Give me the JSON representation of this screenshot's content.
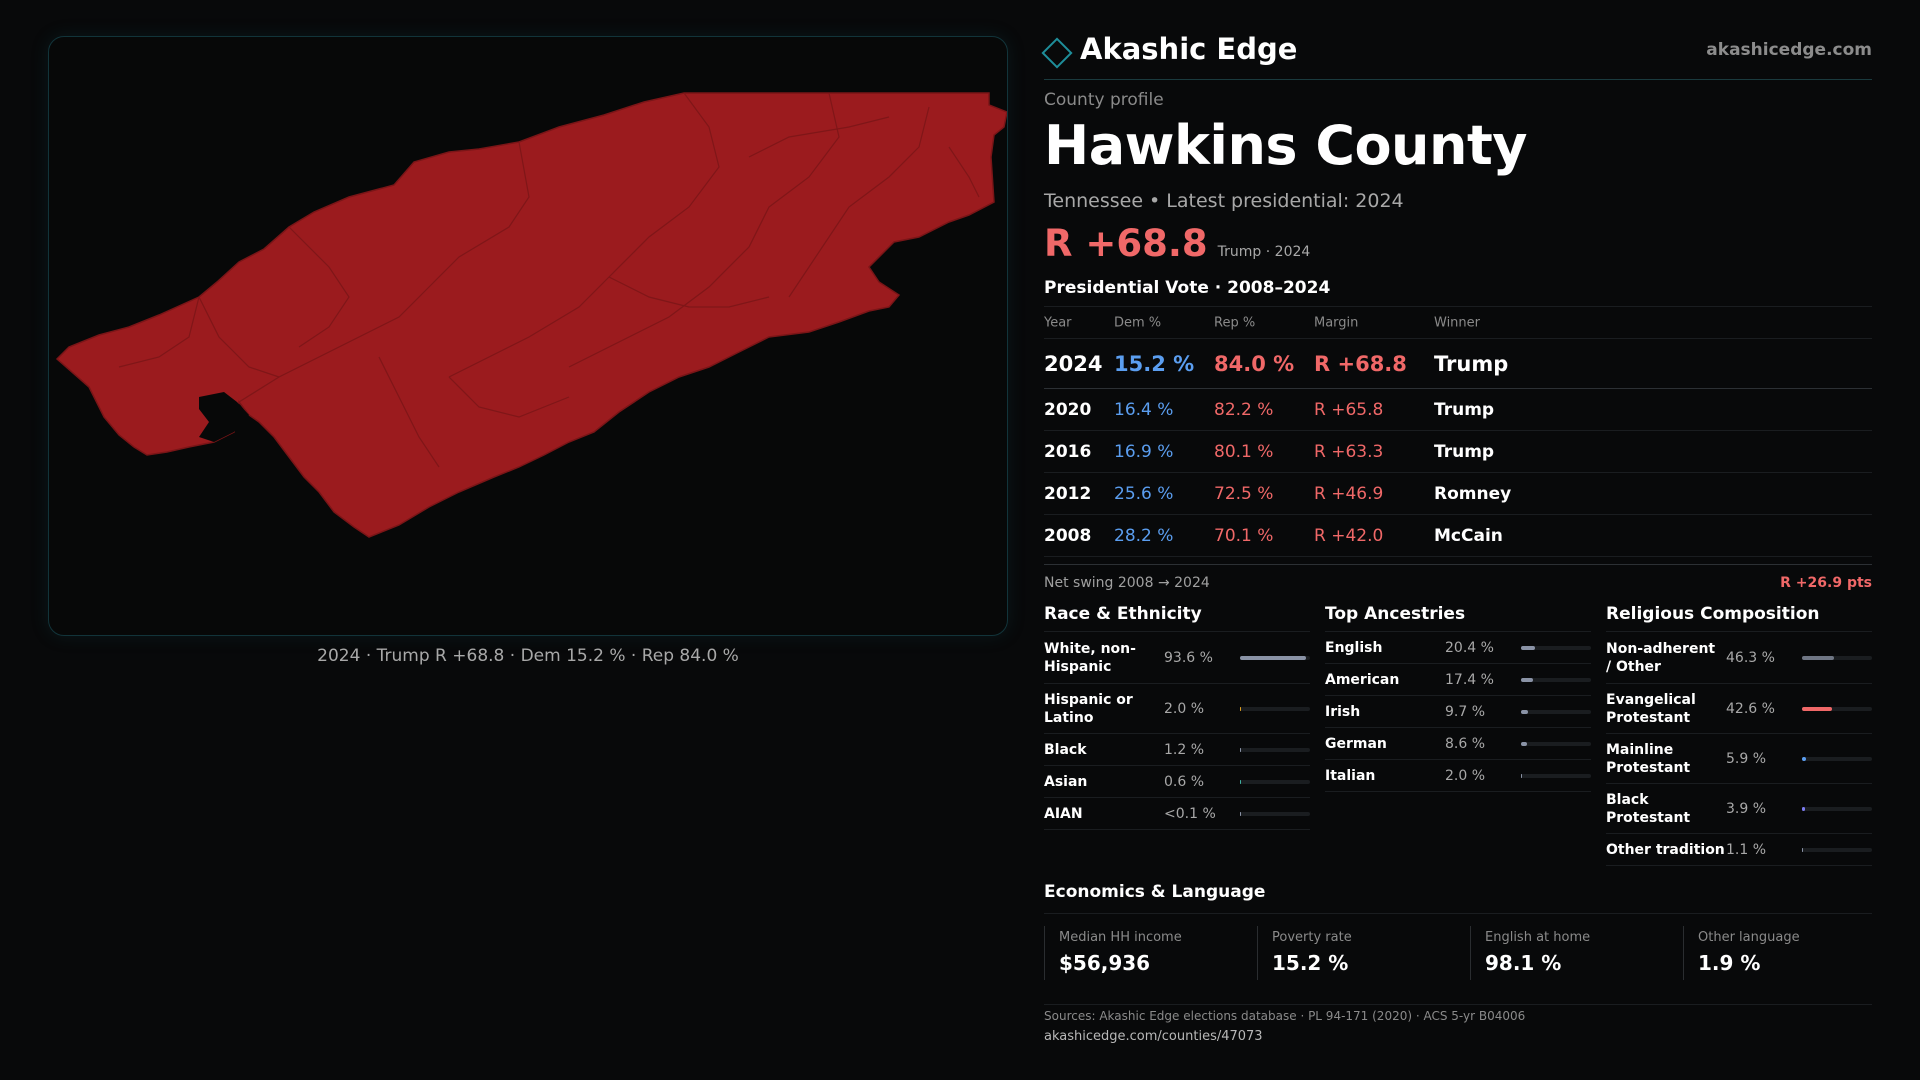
{
  "map": {
    "caption": "2024 · Trump R +68.8 · Dem 15.2 % · Rep 84.0 %",
    "fill_color": "#9b1b1e"
  },
  "brand": {
    "name": "Akashic Edge",
    "url": "akashicedge.com",
    "icon": "diamond-icon",
    "accent": "#1e8e9a"
  },
  "profile": {
    "kicker": "County profile",
    "county": "Hawkins County",
    "subline": "Tennessee • Latest presidential: 2024",
    "headline_margin": "R +68.8",
    "headline_note": "Trump · 2024"
  },
  "vote": {
    "title": "Presidential Vote · 2008–2024",
    "headers": {
      "year": "Year",
      "dem": "Dem %",
      "rep": "Rep %",
      "margin": "Margin",
      "winner": "Winner"
    },
    "rows": [
      {
        "year": "2024",
        "dem": "15.2 %",
        "rep": "84.0 %",
        "margin": "R +68.8",
        "winner": "Trump"
      },
      {
        "year": "2020",
        "dem": "16.4 %",
        "rep": "82.2 %",
        "margin": "R +65.8",
        "winner": "Trump"
      },
      {
        "year": "2016",
        "dem": "16.9 %",
        "rep": "80.1 %",
        "margin": "R +63.3",
        "winner": "Trump"
      },
      {
        "year": "2012",
        "dem": "25.6 %",
        "rep": "72.5 %",
        "margin": "R +46.9",
        "winner": "Romney"
      },
      {
        "year": "2008",
        "dem": "28.2 %",
        "rep": "70.1 %",
        "margin": "R +42.0",
        "winner": "McCain"
      }
    ],
    "colors": {
      "dem": "#5b9ef0",
      "rep": "#f06868"
    }
  },
  "swing": {
    "label": "Net swing 2008 → 2024",
    "value": "R +26.9 pts"
  },
  "race": {
    "title": "Race & Ethnicity",
    "rows": [
      {
        "label": "White, non-Hispanic",
        "value": "93.6 %",
        "pct": 93.6,
        "color": "#8a93a6"
      },
      {
        "label": "Hispanic or Latino",
        "value": "2.0 %",
        "pct": 2.0,
        "color": "#e0a020"
      },
      {
        "label": "Black",
        "value": "1.2 %",
        "pct": 1.2,
        "color": "#8a93a6"
      },
      {
        "label": "Asian",
        "value": "0.6 %",
        "pct": 0.6,
        "color": "#3fb0a0"
      },
      {
        "label": "AIAN",
        "value": "<0.1 %",
        "pct": 0.05,
        "color": "#8a93a6"
      }
    ]
  },
  "ancestry": {
    "title": "Top Ancestries",
    "rows": [
      {
        "label": "English",
        "value": "20.4 %",
        "pct": 20.4,
        "color": "#8a93a6"
      },
      {
        "label": "American",
        "value": "17.4 %",
        "pct": 17.4,
        "color": "#8a93a6"
      },
      {
        "label": "Irish",
        "value": "9.7 %",
        "pct": 9.7,
        "color": "#8a93a6"
      },
      {
        "label": "German",
        "value": "8.6 %",
        "pct": 8.6,
        "color": "#8a93a6"
      },
      {
        "label": "Italian",
        "value": "2.0 %",
        "pct": 2.0,
        "color": "#8a93a6"
      }
    ]
  },
  "religion": {
    "title": "Religious Composition",
    "rows": [
      {
        "label": "Non-adherent / Other",
        "value": "46.3 %",
        "pct": 46.3,
        "color": "#6f7684"
      },
      {
        "label": "Evangelical Protestant",
        "value": "42.6 %",
        "pct": 42.6,
        "color": "#f06868"
      },
      {
        "label": "Mainline Protestant",
        "value": "5.9 %",
        "pct": 5.9,
        "color": "#5b9ef0"
      },
      {
        "label": "Black Protestant",
        "value": "3.9 %",
        "pct": 3.9,
        "color": "#7c7cf0"
      },
      {
        "label": "Other tradition",
        "value": "1.1 %",
        "pct": 1.1,
        "color": "#8a93a6"
      }
    ]
  },
  "economics": {
    "title": "Economics & Language",
    "cards": [
      {
        "label": "Median HH income",
        "value": "$56,936"
      },
      {
        "label": "Poverty rate",
        "value": "15.2 %"
      },
      {
        "label": "English at home",
        "value": "98.1 %"
      },
      {
        "label": "Other language",
        "value": "1.9 %"
      }
    ]
  },
  "sources": {
    "line1": "Sources: Akashic Edge elections database · PL 94-171 (2020) · ACS 5-yr B04006",
    "line2": "akashicedge.com/counties/47073"
  }
}
